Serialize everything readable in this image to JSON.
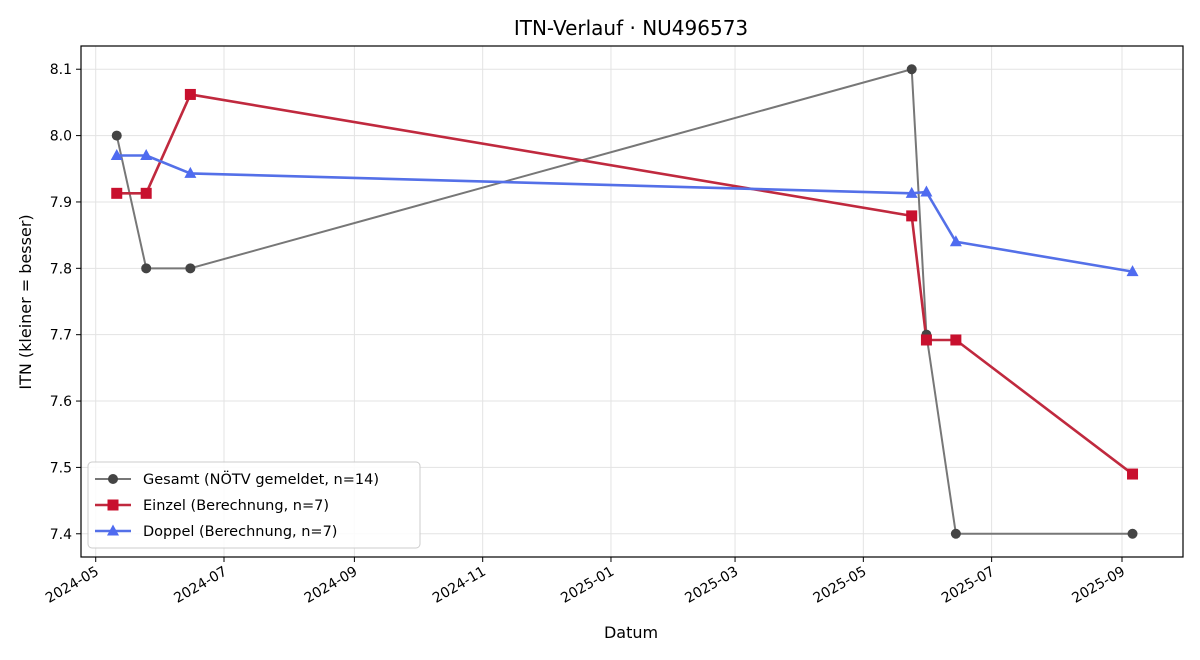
{
  "chart_data": {
    "type": "line",
    "title": "ITN-Verlauf · NU496573",
    "xlabel": "Datum",
    "ylabel": "ITN  (kleiner = besser)",
    "x_type": "date",
    "xlim": [
      "2024-04-24",
      "2025-09-30"
    ],
    "ylim": [
      7.365,
      8.135
    ],
    "x_ticks": [
      "2024-05-01",
      "2024-07-01",
      "2024-09-01",
      "2024-11-01",
      "2025-01-01",
      "2025-03-01",
      "2025-05-01",
      "2025-07-01",
      "2025-09-01"
    ],
    "x_tick_labels": [
      "2024-05",
      "2024-07",
      "2024-09",
      "2024-11",
      "2025-01",
      "2025-03",
      "2025-05",
      "2025-07",
      "2025-09"
    ],
    "y_ticks": [
      7.4,
      7.5,
      7.6,
      7.7,
      7.8,
      7.9,
      8.0,
      8.1
    ],
    "y_tick_labels": [
      "7.4",
      "7.5",
      "7.6",
      "7.7",
      "7.8",
      "7.9",
      "8.0",
      "8.1"
    ],
    "grid": true,
    "legend_position": "lower-left",
    "series": [
      {
        "name": "Gesamt (NÖTV gemeldet, n=14)",
        "color": "#777777",
        "marker_color": "#444444",
        "marker": "circle",
        "points": [
          {
            "x": "2024-05-11",
            "y": 8.0
          },
          {
            "x": "2024-05-25",
            "y": 7.8
          },
          {
            "x": "2024-06-15",
            "y": 7.8
          },
          {
            "x": "2025-05-24",
            "y": 8.1
          },
          {
            "x": "2025-05-31",
            "y": 7.7
          },
          {
            "x": "2025-06-14",
            "y": 7.4
          },
          {
            "x": "2025-09-06",
            "y": 7.4
          }
        ]
      },
      {
        "name": "Einzel (Berechnung, n=7)",
        "color": "#c0293e",
        "marker_color": "#c8102e",
        "marker": "square",
        "points": [
          {
            "x": "2024-05-11",
            "y": 7.913
          },
          {
            "x": "2024-05-25",
            "y": 7.913
          },
          {
            "x": "2024-06-15",
            "y": 8.062
          },
          {
            "x": "2025-05-24",
            "y": 7.879
          },
          {
            "x": "2025-05-31",
            "y": 7.692
          },
          {
            "x": "2025-06-14",
            "y": 7.692
          },
          {
            "x": "2025-09-06",
            "y": 7.49
          }
        ]
      },
      {
        "name": "Doppel (Berechnung, n=7)",
        "color": "#5470e8",
        "marker_color": "#4f6bf0",
        "marker": "triangle",
        "points": [
          {
            "x": "2024-05-11",
            "y": 7.97
          },
          {
            "x": "2024-05-25",
            "y": 7.97
          },
          {
            "x": "2024-06-15",
            "y": 7.943
          },
          {
            "x": "2025-05-24",
            "y": 7.913
          },
          {
            "x": "2025-05-31",
            "y": 7.915
          },
          {
            "x": "2025-06-14",
            "y": 7.84
          },
          {
            "x": "2025-09-06",
            "y": 7.795
          }
        ]
      }
    ]
  }
}
